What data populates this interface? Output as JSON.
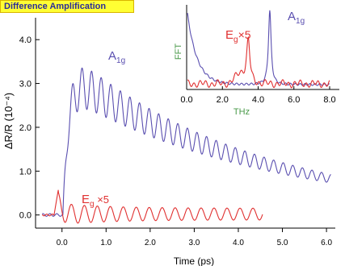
{
  "banner": {
    "label": "Difference Amplification"
  },
  "colors": {
    "a1g": "#5a4fb0",
    "eg": "#e03030",
    "fft_axis": "#4a9a4a",
    "banner_bg": "#ffff33",
    "banner_text": "#2a2a99"
  },
  "chart_data": [
    {
      "type": "line",
      "xlabel": "Time  (ps)",
      "ylabel": "ΔR/R (10⁻⁴)",
      "xlim": [
        -0.6,
        6.2
      ],
      "ylim": [
        -0.3,
        4.5
      ],
      "x_ticks": [
        "0.0",
        "1.0",
        "2.0",
        "3.0",
        "4.0",
        "5.0",
        "6.0"
      ],
      "y_ticks": [
        "0.0",
        "1.0",
        "2.0",
        "3.0",
        "4.0"
      ],
      "grid": false,
      "series": [
        {
          "name": "A1g",
          "label_main": "A",
          "label_sub": "1g",
          "model": {
            "amplitude": 0.55,
            "freq_thz": 4.6,
            "decay_ps": 3.5,
            "baseline_peak": 3.3,
            "baseline_decay_ps": 4.4,
            "x_start": -0.45,
            "x_end": 6.1,
            "onset": 0.02,
            "rise_ps": 0.13
          }
        },
        {
          "name": "Eg ×5",
          "label_main": "E",
          "label_sub": "g",
          "label_suffix": " ×5",
          "model": {
            "amplitude": 0.24,
            "freq_thz": 3.4,
            "decay_ps": 8,
            "baseline_peak": 0.02,
            "x_start": -0.45,
            "x_end": 4.55,
            "onset": -0.08
          }
        }
      ]
    },
    {
      "type": "line",
      "inset": true,
      "xlabel": "THz",
      "ylabel": "FFT",
      "xlim": [
        0,
        8.0
      ],
      "x_ticks": [
        "0.0",
        "2.0",
        "4.0",
        "6.0",
        "8.0"
      ],
      "series": [
        {
          "name": "A1g",
          "label_main": "A",
          "label_sub": "1g",
          "peak_thz": 4.65
        },
        {
          "name": "Eg ×5",
          "label_main": "E",
          "label_sub": "g",
          "label_suffix": "×5",
          "peak_thz": 3.45
        }
      ]
    }
  ]
}
